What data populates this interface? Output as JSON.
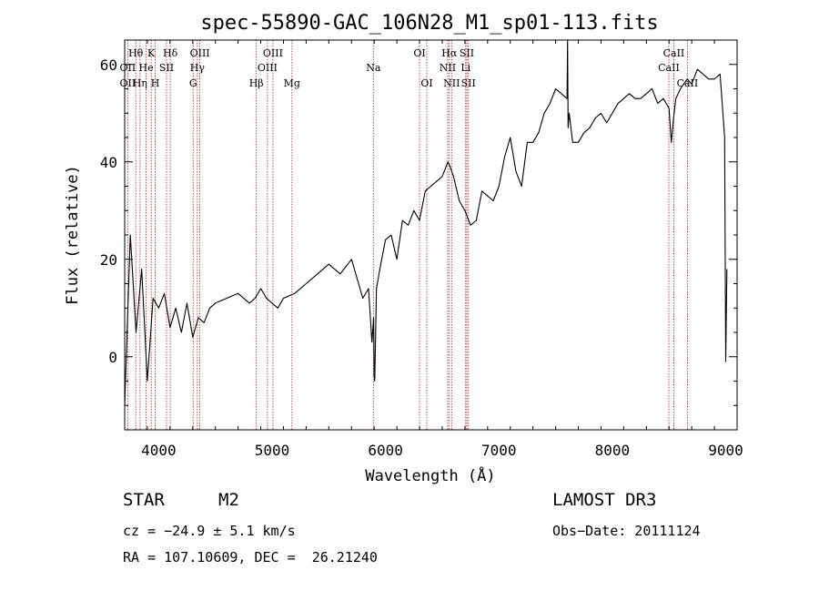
{
  "chart_data": {
    "type": "line",
    "title": "spec-55890-GAC_106N28_M1_sp01-113.fits",
    "xlabel": "Wavelength (Å)",
    "ylabel": "Flux (relative)",
    "xlim": [
      3700,
      9100
    ],
    "ylim": [
      -15,
      65
    ],
    "xticks": [
      4000,
      5000,
      6000,
      7000,
      8000,
      9000
    ],
    "yticks": [
      0,
      20,
      40,
      60
    ],
    "series": [
      {
        "name": "spectrum",
        "x": [
          3700,
          3750,
          3800,
          3850,
          3900,
          3950,
          4000,
          4050,
          4100,
          4150,
          4200,
          4250,
          4300,
          4350,
          4400,
          4450,
          4500,
          4600,
          4700,
          4800,
          4850,
          4900,
          4950,
          5000,
          5050,
          5100,
          5200,
          5300,
          5400,
          5500,
          5600,
          5700,
          5800,
          5850,
          5880,
          5895,
          5900,
          5905,
          5920,
          5950,
          6000,
          6050,
          6100,
          6150,
          6200,
          6250,
          6300,
          6350,
          6400,
          6450,
          6500,
          6550,
          6570,
          6600,
          6650,
          6700,
          6750,
          6800,
          6850,
          6900,
          6950,
          7000,
          7050,
          7100,
          7150,
          7200,
          7250,
          7300,
          7350,
          7400,
          7450,
          7500,
          7550,
          7600,
          7605,
          7610,
          7620,
          7650,
          7700,
          7750,
          7800,
          7850,
          7900,
          7950,
          8000,
          8050,
          8100,
          8150,
          8200,
          8250,
          8300,
          8350,
          8400,
          8450,
          8500,
          8520,
          8540,
          8560,
          8600,
          8660,
          8700,
          8750,
          8800,
          8850,
          8900,
          8950,
          8990,
          9000,
          9010
        ],
        "y": [
          -10,
          25,
          5,
          18,
          -5,
          12,
          10,
          13,
          6,
          10,
          5,
          11,
          4,
          8,
          7,
          10,
          11,
          12,
          13,
          11,
          12,
          14,
          12,
          11,
          10,
          12,
          13,
          15,
          17,
          19,
          17,
          20,
          12,
          14,
          3,
          8,
          -4,
          -5,
          14,
          18,
          24,
          25,
          20,
          28,
          27,
          30,
          28,
          34,
          35,
          36,
          37,
          40,
          39,
          37,
          32,
          30,
          27,
          28,
          34,
          33,
          32,
          35,
          41,
          45,
          38,
          35,
          44,
          44,
          46,
          50,
          52,
          55,
          54,
          53,
          67,
          47,
          50,
          44,
          44,
          46,
          47,
          49,
          50,
          48,
          50,
          52,
          53,
          54,
          53,
          53,
          54,
          55,
          52,
          53,
          51,
          44,
          49,
          53,
          55,
          57,
          56,
          59,
          58,
          57,
          57,
          58,
          45,
          -1,
          18
        ]
      }
    ],
    "spectral_lines": [
      {
        "label": "Hθ",
        "wavelength": 3798,
        "row": 1
      },
      {
        "label": "OII",
        "wavelength": 3727,
        "row": 2
      },
      {
        "label": "OII",
        "wavelength": 3727,
        "row": 3
      },
      {
        "label": "K",
        "wavelength": 3934,
        "row": 1
      },
      {
        "label": "He",
        "wavelength": 3889,
        "row": 2
      },
      {
        "label": "Hη",
        "wavelength": 3835,
        "row": 3
      },
      {
        "label": "SII",
        "wavelength": 4069,
        "row": 2
      },
      {
        "label": "H",
        "wavelength": 3969,
        "row": 3
      },
      {
        "label": "Hδ",
        "wavelength": 4102,
        "row": 1
      },
      {
        "label": "OIII",
        "wavelength": 4363,
        "row": 1
      },
      {
        "label": "Hγ",
        "wavelength": 4341,
        "row": 2
      },
      {
        "label": "G",
        "wavelength": 4304,
        "row": 3
      },
      {
        "label": "Hβ",
        "wavelength": 4861,
        "row": 3
      },
      {
        "label": "OIII",
        "wavelength": 5007,
        "row": 1
      },
      {
        "label": "OIII",
        "wavelength": 4959,
        "row": 2
      },
      {
        "label": "Mg",
        "wavelength": 5175,
        "row": 3
      },
      {
        "label": "Na",
        "wavelength": 5893,
        "row": 2
      },
      {
        "label": "OI",
        "wavelength": 6300,
        "row": 1
      },
      {
        "label": "OI",
        "wavelength": 6364,
        "row": 3
      },
      {
        "label": "Hα",
        "wavelength": 6563,
        "row": 1
      },
      {
        "label": "NII",
        "wavelength": 6548,
        "row": 2
      },
      {
        "label": "NII",
        "wavelength": 6583,
        "row": 3
      },
      {
        "label": "SII",
        "wavelength": 6717,
        "row": 1
      },
      {
        "label": "Li",
        "wavelength": 6707,
        "row": 2
      },
      {
        "label": "SII",
        "wavelength": 6731,
        "row": 3
      },
      {
        "label": "CaII",
        "wavelength": 8542,
        "row": 1
      },
      {
        "label": "CaII",
        "wavelength": 8498,
        "row": 2
      },
      {
        "label": "CaII",
        "wavelength": 8662,
        "row": 3
      }
    ],
    "line_color": "#000000",
    "marker_color": "#b22222"
  },
  "footer": {
    "class": "STAR",
    "subclass": "M2",
    "survey": "LAMOST DR3",
    "cz": "cz = −24.9 ± 5.1 km/s",
    "obs_date": "Obs−Date: 20111124",
    "coords": "RA = 107.10609, DEC =  26.21240"
  }
}
